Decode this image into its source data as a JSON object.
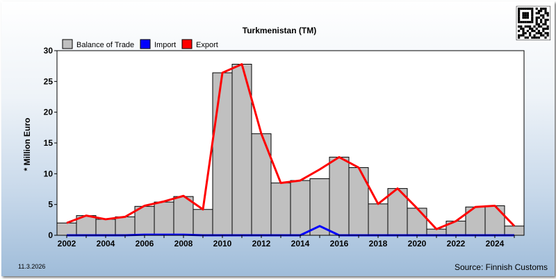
{
  "chart_data": {
    "type": "bar",
    "title": "Turkmenistan (TM)",
    "xlabel": "",
    "ylabel": "* Million Euro",
    "ylim": [
      0,
      30
    ],
    "yticks": [
      0,
      5,
      10,
      15,
      20,
      25,
      30
    ],
    "x_tick_labels": [
      "2002",
      "2004",
      "2006",
      "2008",
      "2010",
      "2012",
      "2014",
      "2016",
      "2018",
      "2020",
      "2022",
      "2024"
    ],
    "x": [
      2002,
      2003,
      2004,
      2005,
      2006,
      2007,
      2008,
      2009,
      2010,
      2011,
      2012,
      2013,
      2014,
      2015,
      2016,
      2017,
      2018,
      2019,
      2020,
      2021,
      2022,
      2023,
      2024,
      2025
    ],
    "grid": false,
    "legend_position": "top-left",
    "series": [
      {
        "name": "Balance of Trade",
        "kind": "bar",
        "color": "#c0c0c0",
        "values": [
          2.0,
          3.2,
          2.6,
          3.0,
          4.7,
          5.4,
          6.3,
          4.2,
          26.4,
          27.8,
          16.5,
          8.5,
          8.9,
          9.2,
          12.7,
          11.0,
          5.1,
          7.6,
          4.4,
          1.0,
          2.3,
          4.6,
          4.8,
          1.5
        ]
      },
      {
        "name": "Import",
        "kind": "line",
        "color": "#0000ff",
        "values": [
          0,
          0,
          0,
          0,
          0.1,
          0.1,
          0.1,
          0,
          0,
          0,
          0,
          0,
          0,
          1.5,
          0,
          0,
          0,
          0,
          0,
          0,
          0,
          0,
          0,
          0
        ]
      },
      {
        "name": "Export",
        "kind": "line",
        "color": "#ff0000",
        "values": [
          2.0,
          3.2,
          2.6,
          3.0,
          4.8,
          5.5,
          6.4,
          4.2,
          26.4,
          27.8,
          16.5,
          8.5,
          8.9,
          10.7,
          12.7,
          11.0,
          5.1,
          7.6,
          4.4,
          1.0,
          2.3,
          4.6,
          4.8,
          1.5
        ]
      }
    ],
    "date_label": "11.3.2026",
    "source_label": "Source: Finnish Customs"
  }
}
